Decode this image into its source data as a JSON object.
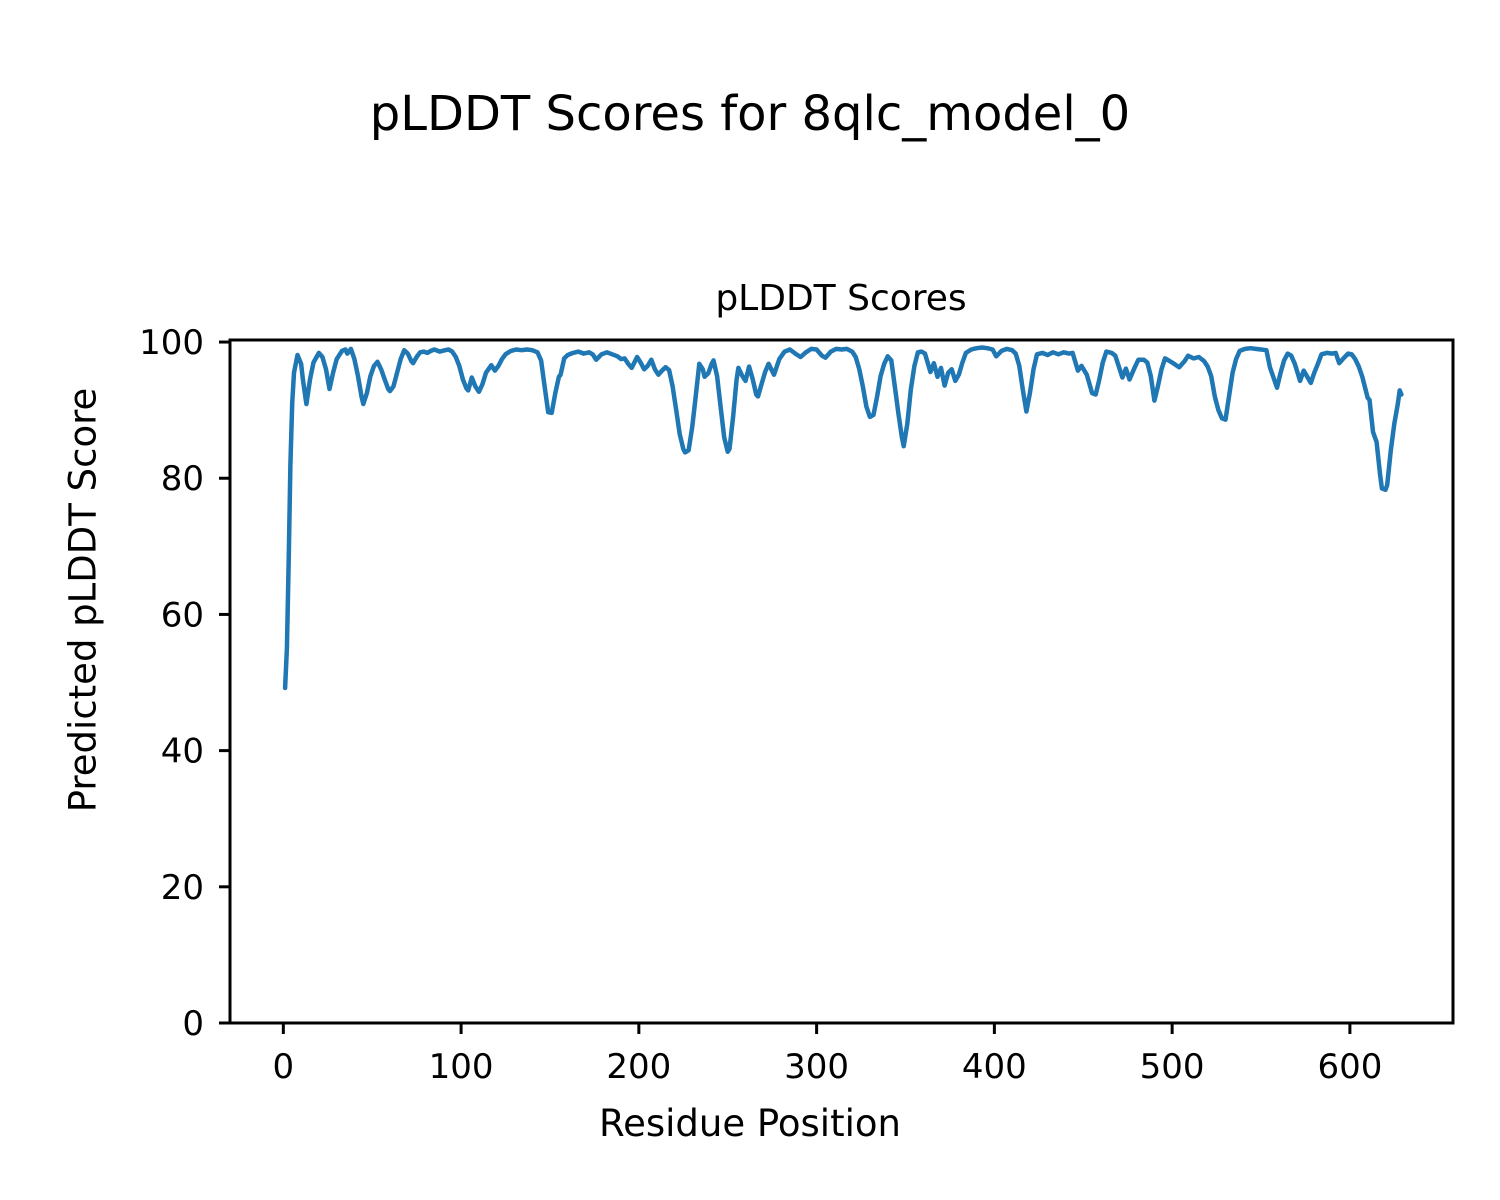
{
  "figure": {
    "title": "pLDDT Scores for 8qlc_model_0",
    "background_color": "#ffffff",
    "text_color": "#000000"
  },
  "chart_data": {
    "type": "line",
    "title": "pLDDT Scores",
    "xlabel": "Residue Position",
    "ylabel": "Predicted pLDDT Score",
    "grid": false,
    "legend": null,
    "line_color": "#1f77b4",
    "axis_color": "#000000",
    "xlim": [
      -30,
      658
    ],
    "ylim": [
      0,
      100.3
    ],
    "x_ticks": [
      0,
      100,
      200,
      300,
      400,
      500,
      600
    ],
    "y_ticks": [
      0,
      20,
      40,
      60,
      80,
      100
    ],
    "series": [
      {
        "name": "pLDDT",
        "x": [
          1,
          2,
          3,
          4,
          5,
          6,
          8,
          10,
          11,
          13,
          15,
          17,
          20,
          22,
          24,
          26,
          28,
          30,
          33,
          35,
          36,
          38,
          40,
          42,
          44,
          45,
          47,
          49,
          51,
          53,
          55,
          57,
          59,
          60,
          62,
          64,
          66,
          68,
          70,
          72,
          73,
          75,
          77,
          79,
          81,
          83,
          85,
          88,
          91,
          93,
          95,
          97,
          99,
          101,
          103,
          104,
          106,
          108,
          110,
          112,
          114,
          117,
          119,
          121,
          123,
          125,
          128,
          131,
          134,
          137,
          140,
          143,
          145,
          147,
          149,
          151,
          153,
          155,
          156,
          158,
          160,
          163,
          166,
          169,
          172,
          174,
          176,
          179,
          182,
          185,
          188,
          190,
          192,
          194,
          196,
          199,
          201,
          203,
          205,
          207,
          209,
          211,
          213,
          215,
          217,
          219,
          221,
          223,
          225,
          226,
          228,
          230,
          232,
          234,
          236,
          237,
          239,
          241,
          242,
          244,
          246,
          248,
          250,
          251,
          253,
          255,
          256,
          258,
          260,
          262,
          264,
          266,
          267,
          269,
          271,
          273,
          276,
          279,
          282,
          285,
          288,
          291,
          294,
          297,
          300,
          303,
          305,
          308,
          311,
          314,
          317,
          320,
          322,
          324,
          326,
          328,
          330,
          332,
          334,
          336,
          338,
          340,
          342,
          344,
          346,
          348,
          349,
          351,
          353,
          355,
          357,
          359,
          361,
          364,
          366,
          368,
          370,
          372,
          374,
          376,
          378,
          380,
          382,
          384,
          387,
          390,
          393,
          396,
          399,
          401,
          404,
          407,
          410,
          412,
          414,
          416,
          418,
          420,
          422,
          424,
          427,
          430,
          433,
          436,
          439,
          442,
          444,
          447,
          449,
          452,
          455,
          457,
          459,
          461,
          463,
          466,
          468,
          472,
          474,
          476,
          479,
          481,
          484,
          486,
          488,
          490,
          492,
          494,
          496,
          498,
          500,
          504,
          507,
          509,
          512,
          515,
          518,
          520,
          522,
          524,
          526,
          528,
          530,
          532,
          534,
          536,
          538,
          541,
          544,
          547,
          550,
          553,
          555,
          557,
          559,
          561,
          563,
          565,
          567,
          569,
          572,
          574,
          578,
          580,
          582,
          584,
          587,
          590,
          592,
          594,
          596,
          599,
          601,
          603,
          605,
          607,
          610,
          611,
          613,
          615,
          617,
          618,
          620,
          621,
          623,
          625,
          627,
          628,
          629
        ],
        "y": [
          49.2,
          55,
          68,
          82,
          91,
          95.5,
          98.1,
          96.8,
          94.5,
          90.9,
          94.5,
          97,
          98.4,
          97.8,
          96,
          93.1,
          95.5,
          97.5,
          98.7,
          98.9,
          98.3,
          99,
          97.5,
          95,
          92,
          90.9,
          92.5,
          95,
          96.5,
          97.1,
          96,
          94.5,
          93.1,
          92.8,
          93.5,
          95.5,
          97.5,
          98.8,
          98.3,
          97.2,
          96.9,
          97.8,
          98.5,
          98.6,
          98.4,
          98.7,
          98.9,
          98.6,
          98.8,
          98.9,
          98.6,
          97.8,
          96.5,
          94.5,
          93.2,
          92.9,
          94.8,
          93.5,
          92.7,
          93.8,
          95.5,
          96.6,
          95.8,
          96.5,
          97.5,
          98.2,
          98.7,
          98.9,
          98.8,
          98.9,
          98.8,
          98.5,
          97.3,
          93.5,
          89.7,
          89.6,
          92.5,
          94.9,
          95.2,
          97.6,
          98.1,
          98.4,
          98.6,
          98.3,
          98.5,
          98.2,
          97.4,
          98.2,
          98.5,
          98.2,
          97.9,
          97.5,
          97.6,
          96.8,
          96.2,
          97.8,
          97,
          96,
          96.5,
          97.4,
          96,
          95.2,
          95.8,
          96.3,
          95.9,
          93.5,
          90,
          86.5,
          84.3,
          83.8,
          84.1,
          87.5,
          92,
          96.8,
          96,
          94.9,
          95.4,
          96.8,
          97.3,
          95,
          90.5,
          86,
          83.9,
          84.3,
          89,
          94.5,
          96.2,
          95.1,
          94.3,
          96.4,
          94.6,
          92.3,
          92,
          93.8,
          95.6,
          96.8,
          95.2,
          97.5,
          98.6,
          98.9,
          98.3,
          97.8,
          98.5,
          99,
          98.9,
          98,
          97.7,
          98.6,
          99,
          98.9,
          99,
          98.6,
          97.8,
          96,
          93.5,
          90.5,
          89,
          89.3,
          92,
          95,
          96.8,
          97.9,
          97.3,
          93.5,
          89.5,
          86,
          84.7,
          88,
          93,
          96.5,
          98.5,
          98.6,
          98.3,
          95.6,
          96.9,
          94.9,
          96.2,
          93.6,
          95.5,
          96,
          94.3,
          95.2,
          97,
          98.4,
          98.9,
          99.1,
          99.2,
          99.1,
          98.9,
          97.9,
          98.7,
          99,
          98.8,
          98.3,
          96.5,
          93,
          89.8,
          92.5,
          96,
          98.2,
          98.4,
          98.1,
          98.5,
          98.2,
          98.5,
          98.3,
          98.4,
          95.8,
          96.5,
          95.2,
          92.5,
          92.3,
          94.5,
          97,
          98.6,
          98.4,
          98,
          94.8,
          96.1,
          94.5,
          96.3,
          97.4,
          97.4,
          97,
          95,
          91.4,
          93.5,
          96,
          97.6,
          97.3,
          97,
          96.3,
          97.2,
          98,
          97.6,
          97.8,
          97.2,
          96.4,
          95,
          92,
          90,
          88.8,
          88.6,
          92,
          95.5,
          97.5,
          98.7,
          99,
          99.1,
          99,
          98.9,
          98.8,
          96.3,
          94.8,
          93.3,
          95.5,
          97.3,
          98.3,
          98,
          96.8,
          94.3,
          95.8,
          94,
          95.5,
          96.8,
          98.2,
          98.4,
          98.3,
          98.4,
          96.9,
          97.5,
          98.3,
          98.2,
          97.5,
          96.4,
          94.9,
          91.8,
          91.5,
          86.8,
          85.3,
          80.5,
          78.5,
          78.3,
          79,
          84.1,
          88,
          91,
          92.9,
          92.3
        ]
      }
    ]
  }
}
